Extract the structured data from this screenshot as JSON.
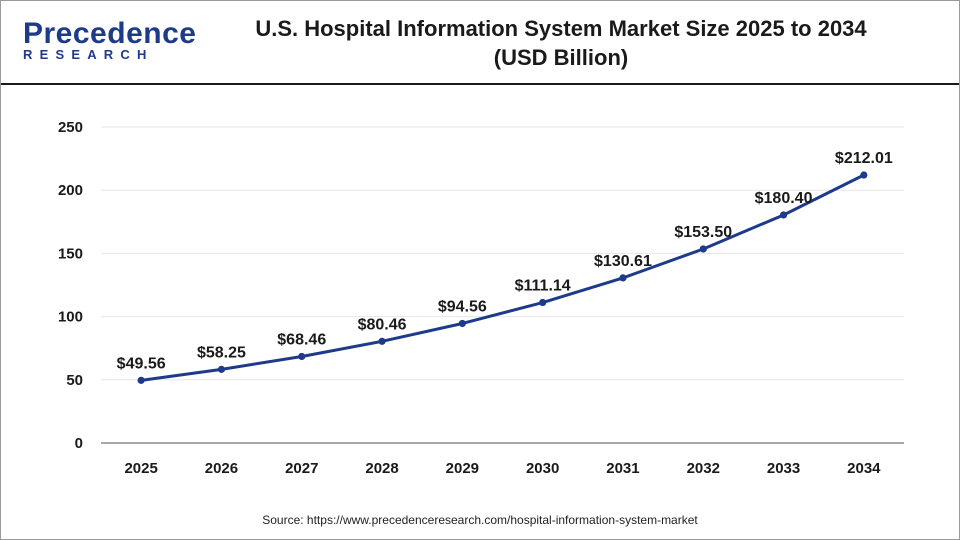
{
  "header": {
    "logo_word": "Precedence",
    "logo_sub": "RESEARCH",
    "title_line1": "U.S. Hospital Information System Market Size 2025 to 2034",
    "title_line2": "(USD Billion)"
  },
  "footer": {
    "source": "Source: https://www.precedenceresearch.com/hospital-information-system-market"
  },
  "colors": {
    "line": "#1e3a8a",
    "marker": "#1e3a8a",
    "grid": "#e6e6e6",
    "axis": "#8c8c8c",
    "brand": "#1e3a8a"
  },
  "chart_data": {
    "type": "line",
    "title": "U.S. Hospital Information System Market Size 2025 to 2034",
    "subtitle": "(USD Billion)",
    "xlabel": "",
    "ylabel": "",
    "categories": [
      "2025",
      "2026",
      "2027",
      "2028",
      "2029",
      "2030",
      "2031",
      "2032",
      "2033",
      "2034"
    ],
    "values": [
      49.56,
      58.25,
      68.46,
      80.46,
      94.56,
      111.14,
      130.61,
      153.5,
      180.4,
      212.01
    ],
    "data_labels": [
      "$49.56",
      "$58.25",
      "$68.46",
      "$80.46",
      "$94.56",
      "$111.14",
      "$130.61",
      "$153.50",
      "$180.40",
      "$212.01"
    ],
    "yticks": [
      0,
      50,
      100,
      150,
      200,
      250
    ],
    "ylim": [
      0,
      250
    ],
    "grid": true,
    "legend": "none"
  }
}
